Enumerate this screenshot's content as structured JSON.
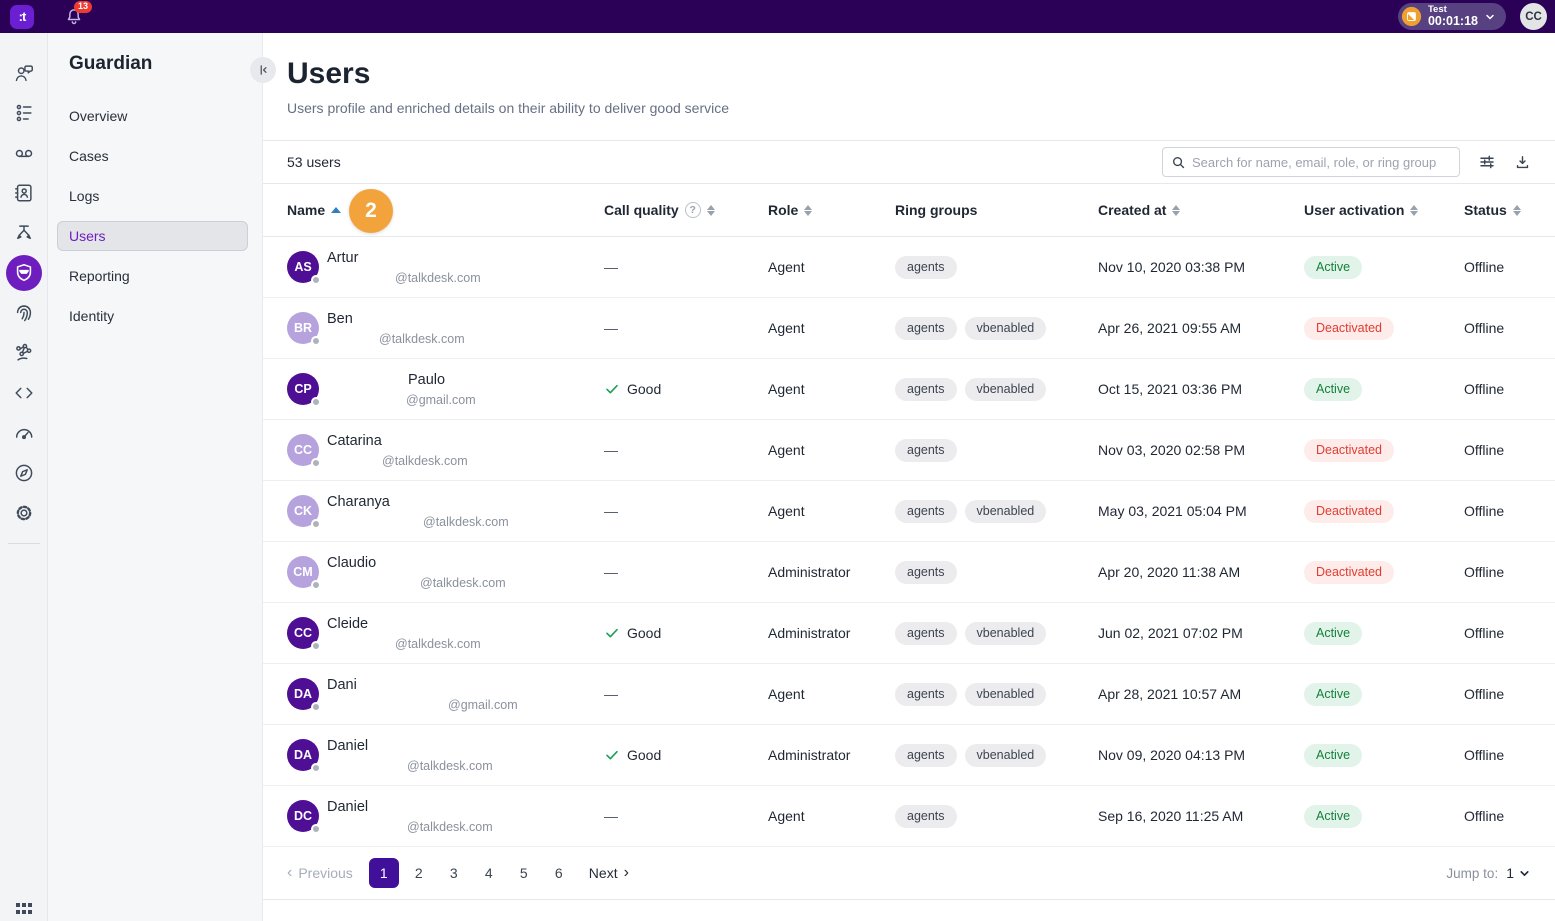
{
  "topbar": {
    "logo_text": ":t",
    "notifications_count": "13",
    "session": {
      "label": "Test",
      "timer": "00:01:18"
    },
    "avatar_initials": "CC"
  },
  "icon_rail": {
    "items": [
      {
        "icon": "agent-chat"
      },
      {
        "icon": "queue-list"
      },
      {
        "icon": "recordings"
      },
      {
        "icon": "contacts"
      },
      {
        "icon": "routing-flow"
      },
      {
        "icon": "guardian-shield",
        "selected": true
      },
      {
        "icon": "fingerprint"
      },
      {
        "icon": "network-graph"
      },
      {
        "icon": "code"
      },
      {
        "icon": "dashboard-gauge"
      },
      {
        "icon": "explore-compass"
      },
      {
        "icon": "settings-gear"
      }
    ],
    "bottom_icon": "apps-grid"
  },
  "sidebar": {
    "title": "Guardian",
    "items": [
      {
        "label": "Overview"
      },
      {
        "label": "Cases"
      },
      {
        "label": "Logs"
      },
      {
        "label": "Users",
        "selected": true
      },
      {
        "label": "Reporting"
      },
      {
        "label": "Identity"
      }
    ]
  },
  "page": {
    "title": "Users",
    "subtitle": "Users profile and enriched details on their ability to deliver good service",
    "count_label": "53 users",
    "search_placeholder": "Search for name, email, role, or ring group"
  },
  "annotation_marker": {
    "label": "2",
    "color": "#f2a33c"
  },
  "table": {
    "columns": [
      {
        "label": "Name",
        "sort": "asc"
      },
      {
        "label": "Call quality",
        "sort": "both",
        "help": true
      },
      {
        "label": "Role",
        "sort": "both"
      },
      {
        "label": "Ring groups"
      },
      {
        "label": "Created at",
        "sort": "both"
      },
      {
        "label": "User activation",
        "sort": "both"
      },
      {
        "label": "Status",
        "sort": "both"
      }
    ],
    "rows": [
      {
        "initials": "AS",
        "avatar_tone": "dark",
        "name": "Artur",
        "name_indent": 0,
        "email": "@talkdesk.com",
        "email_indent": 68,
        "call_quality": "—",
        "role": "Agent",
        "ring_groups": [
          "agents"
        ],
        "created_at": "Nov 10, 2020 03:38 PM",
        "activation": "Active",
        "status": "Offline"
      },
      {
        "initials": "BR",
        "avatar_tone": "light",
        "name": "Ben",
        "name_indent": 0,
        "email": "@talkdesk.com",
        "email_indent": 52,
        "call_quality": "—",
        "role": "Agent",
        "ring_groups": [
          "agents",
          "vbenabled"
        ],
        "created_at": "Apr 26, 2021 09:55 AM",
        "activation": "Deactivated",
        "status": "Offline"
      },
      {
        "initials": "CP",
        "avatar_tone": "dark",
        "name": "Paulo",
        "name_indent": 81,
        "email": "@gmail.com",
        "email_indent": 79,
        "call_quality": "Good",
        "role": "Agent",
        "ring_groups": [
          "agents",
          "vbenabled"
        ],
        "created_at": "Oct 15, 2021 03:36 PM",
        "activation": "Active",
        "status": "Offline"
      },
      {
        "initials": "CC",
        "avatar_tone": "light",
        "name": "Catarina",
        "name_indent": 0,
        "email": "@talkdesk.com",
        "email_indent": 55,
        "call_quality": "—",
        "role": "Agent",
        "ring_groups": [
          "agents"
        ],
        "created_at": "Nov 03, 2020 02:58 PM",
        "activation": "Deactivated",
        "status": "Offline"
      },
      {
        "initials": "CK",
        "avatar_tone": "light",
        "name": "Charanya",
        "name_indent": 0,
        "email": "@talkdesk.com",
        "email_indent": 96,
        "call_quality": "—",
        "role": "Agent",
        "ring_groups": [
          "agents",
          "vbenabled"
        ],
        "created_at": "May 03, 2021 05:04 PM",
        "activation": "Deactivated",
        "status": "Offline"
      },
      {
        "initials": "CM",
        "avatar_tone": "light",
        "name": "Claudio",
        "name_indent": 0,
        "email": "@talkdesk.com",
        "email_indent": 93,
        "call_quality": "—",
        "role": "Administrator",
        "ring_groups": [
          "agents"
        ],
        "created_at": "Apr 20, 2020 11:38 AM",
        "activation": "Deactivated",
        "status": "Offline"
      },
      {
        "initials": "CC",
        "avatar_tone": "dark",
        "name": "Cleide",
        "name_indent": 0,
        "email": "@talkdesk.com",
        "email_indent": 68,
        "call_quality": "Good",
        "role": "Administrator",
        "ring_groups": [
          "agents",
          "vbenabled"
        ],
        "created_at": "Jun 02, 2021 07:02 PM",
        "activation": "Active",
        "status": "Offline"
      },
      {
        "initials": "DA",
        "avatar_tone": "dark",
        "name": "Dani",
        "name_indent": 0,
        "email": "@gmail.com",
        "email_indent": 121,
        "call_quality": "—",
        "role": "Agent",
        "ring_groups": [
          "agents",
          "vbenabled"
        ],
        "created_at": "Apr 28, 2021 10:57 AM",
        "activation": "Active",
        "status": "Offline"
      },
      {
        "initials": "DA",
        "avatar_tone": "dark",
        "name": "Daniel",
        "name_indent": 0,
        "email": "@talkdesk.com",
        "email_indent": 80,
        "call_quality": "Good",
        "role": "Administrator",
        "ring_groups": [
          "agents",
          "vbenabled"
        ],
        "created_at": "Nov 09, 2020 04:13 PM",
        "activation": "Active",
        "status": "Offline"
      },
      {
        "initials": "DC",
        "avatar_tone": "dark",
        "name": "Daniel",
        "name_indent": 0,
        "email": "@talkdesk.com",
        "email_indent": 80,
        "call_quality": "—",
        "role": "Agent",
        "ring_groups": [
          "agents"
        ],
        "created_at": "Sep 16, 2020 11:25 AM",
        "activation": "Active",
        "status": "Offline"
      }
    ]
  },
  "pagination": {
    "previous_label": "Previous",
    "pages": [
      "1",
      "2",
      "3",
      "4",
      "5",
      "6"
    ],
    "active_page": "1",
    "next_label": "Next",
    "jump_label": "Jump to:",
    "jump_value": "1"
  },
  "colors": {
    "topbar_bg": "#2b0057",
    "brand_purple": "#6e1ebe",
    "active_badge_bg": "#e2f3e9",
    "active_badge_text": "#15803d",
    "deactivated_badge_bg": "#fdecea",
    "deactivated_badge_text": "#e23c32",
    "marker_orange": "#f2a33c",
    "pagination_active_bg": "#40109b"
  }
}
